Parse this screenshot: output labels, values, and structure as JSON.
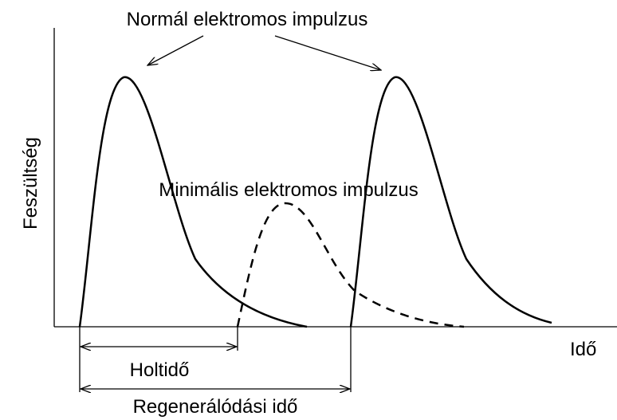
{
  "labels": {
    "normal_pulse": "Normál elektromos impulzus",
    "y_axis": "Feszültség",
    "minimal_pulse": "Minimális elektromos impulzus",
    "x_axis": "Idő",
    "dead_time": "Holtidő",
    "regeneration_time": "Regenerálódási idő"
  }
}
